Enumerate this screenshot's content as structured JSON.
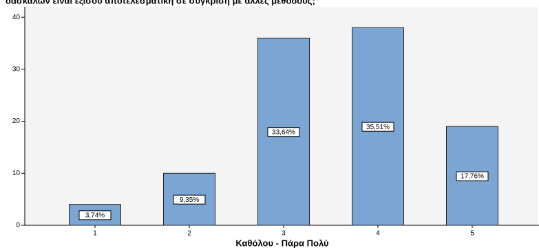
{
  "chart_data": {
    "type": "bar",
    "title": "δασκάλων είναι εξίσου αποτελεσματική σε σύγκριση με άλλες μεθόδους;",
    "x_label": "Καθόλου - Πάρα Πολύ",
    "categories": [
      "1",
      "2",
      "3",
      "4",
      "5"
    ],
    "values": [
      4,
      10,
      36,
      38,
      19
    ],
    "bar_labels": [
      "3,74%",
      "9,35%",
      "33,64%",
      "35,51%",
      "17,76%"
    ],
    "color": "#7ba6d4",
    "ylim": [
      0,
      42
    ],
    "yticks": [
      0,
      10,
      20,
      30,
      40
    ],
    "grid": false
  }
}
